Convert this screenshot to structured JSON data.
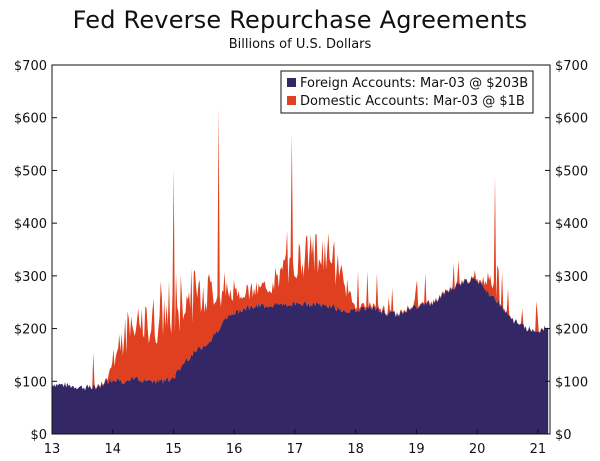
{
  "chart_data": {
    "type": "area",
    "title": "Fed Reverse Repurchase Agreements",
    "subtitle": "Billions of U.S. Dollars",
    "xlabel": "",
    "ylabel": "",
    "stacked": true,
    "ylim": [
      0,
      700
    ],
    "y_ticks": [
      0,
      100,
      200,
      300,
      400,
      500,
      600,
      700
    ],
    "y_tick_labels": [
      "$0",
      "$100",
      "$200",
      "$300",
      "$400",
      "$500",
      "$600",
      "$700"
    ],
    "x_range": [
      2013.0,
      2021.2
    ],
    "x_ticks": [
      2013,
      2014,
      2015,
      2016,
      2017,
      2018,
      2019,
      2020,
      2021
    ],
    "x_tick_labels": [
      "13",
      "14",
      "15",
      "16",
      "17",
      "18",
      "19",
      "20",
      "21"
    ],
    "legend_position": "top-right",
    "grid": false,
    "x": [
      2013.0,
      2013.2,
      2013.4,
      2013.6,
      2013.8,
      2013.9,
      2014.0,
      2014.2,
      2014.4,
      2014.6,
      2014.8,
      2015.0,
      2015.2,
      2015.4,
      2015.6,
      2015.8,
      2016.0,
      2016.2,
      2016.4,
      2016.6,
      2016.8,
      2017.0,
      2017.2,
      2017.4,
      2017.6,
      2017.8,
      2017.95,
      2018.1,
      2018.3,
      2018.5,
      2018.7,
      2018.9,
      2019.1,
      2019.3,
      2019.5,
      2019.7,
      2019.9,
      2020.0,
      2020.1,
      2020.2,
      2020.3,
      2020.4,
      2020.5,
      2020.6,
      2020.8,
      2021.0,
      2021.17
    ],
    "series": [
      {
        "name": "Foreign Accounts: Mar-03 @ $203B",
        "color": "#332865",
        "values": [
          95,
          93,
          90,
          88,
          92,
          100,
          105,
          100,
          105,
          102,
          100,
          105,
          140,
          160,
          175,
          210,
          230,
          240,
          242,
          245,
          245,
          248,
          246,
          245,
          242,
          235,
          232,
          240,
          238,
          230,
          225,
          240,
          245,
          250,
          270,
          285,
          292,
          288,
          280,
          265,
          255,
          245,
          230,
          215,
          200,
          195,
          203
        ]
      },
      {
        "name": "Domestic Accounts: Mar-03 @ $1B",
        "color": "#e0401f",
        "values": [
          0,
          0,
          0,
          0,
          2,
          3,
          45,
          80,
          90,
          110,
          120,
          130,
          120,
          110,
          95,
          60,
          40,
          30,
          30,
          40,
          60,
          80,
          95,
          100,
          90,
          70,
          10,
          5,
          5,
          3,
          2,
          2,
          2,
          2,
          2,
          2,
          2,
          3,
          5,
          40,
          10,
          3,
          2,
          1,
          1,
          1,
          1
        ]
      }
    ],
    "peaks": [
      {
        "x": 2015.0,
        "total": 505
      },
      {
        "x": 2015.75,
        "total": 620
      },
      {
        "x": 2016.95,
        "total": 570
      },
      {
        "x": 2020.3,
        "total": 490
      }
    ]
  }
}
